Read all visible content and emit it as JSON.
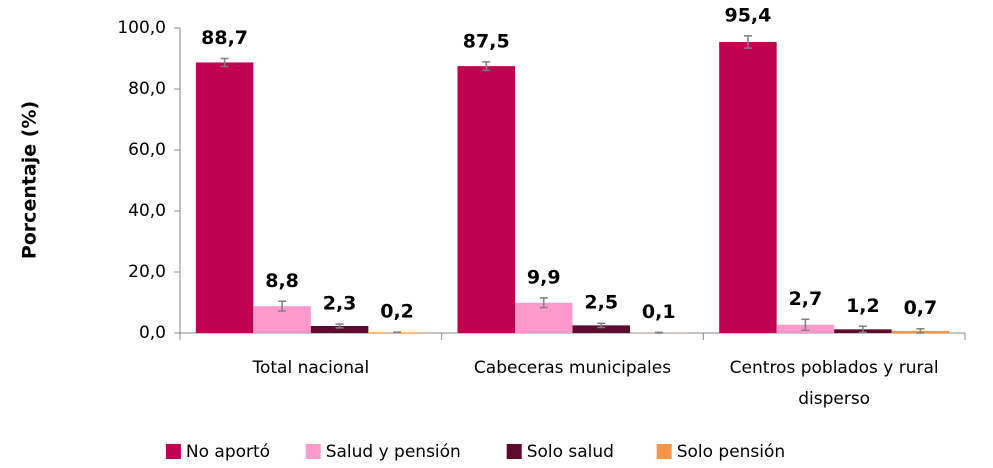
{
  "chart_data": {
    "type": "bar",
    "categories": [
      "Total nacional",
      "Cabeceras municipales",
      "Centros poblados y rural disperso"
    ],
    "y_label": "Porcentaje (%)",
    "series": [
      {
        "name": "No aportó",
        "color": "#c0004f",
        "values": [
          88.7,
          87.5,
          95.4
        ],
        "value_labels": [
          "88,7",
          "87,5",
          "95,4"
        ],
        "errors": [
          1.3,
          1.4,
          2.0
        ]
      },
      {
        "name": "Salud y pensión",
        "color": "#ff99cc",
        "values": [
          8.8,
          9.9,
          2.7
        ],
        "value_labels": [
          "8,8",
          "9,9",
          "2,7"
        ],
        "errors": [
          1.6,
          1.6,
          1.8
        ]
      },
      {
        "name": "Solo salud",
        "color": "#5c0a2e",
        "values": [
          2.3,
          2.5,
          1.2
        ],
        "value_labels": [
          "2,3",
          "2,5",
          "1,2"
        ],
        "errors": [
          0.6,
          0.7,
          1.0
        ]
      },
      {
        "name": "Solo pensión",
        "color": "#f79646",
        "values": [
          0.2,
          0.1,
          0.7
        ],
        "value_labels": [
          "0,2",
          "0,1",
          "0,7"
        ],
        "errors": [
          0.1,
          0.1,
          0.7
        ]
      }
    ],
    "ylim": [
      0,
      100
    ],
    "yticks": [
      {
        "value": 0,
        "label": "0,0"
      },
      {
        "value": 20,
        "label": "20,0"
      },
      {
        "value": 40,
        "label": "40,0"
      },
      {
        "value": 60,
        "label": "60,0"
      },
      {
        "value": 80,
        "label": "80,0"
      },
      {
        "value": 100,
        "label": "100,0"
      }
    ],
    "legend": "bottom"
  }
}
